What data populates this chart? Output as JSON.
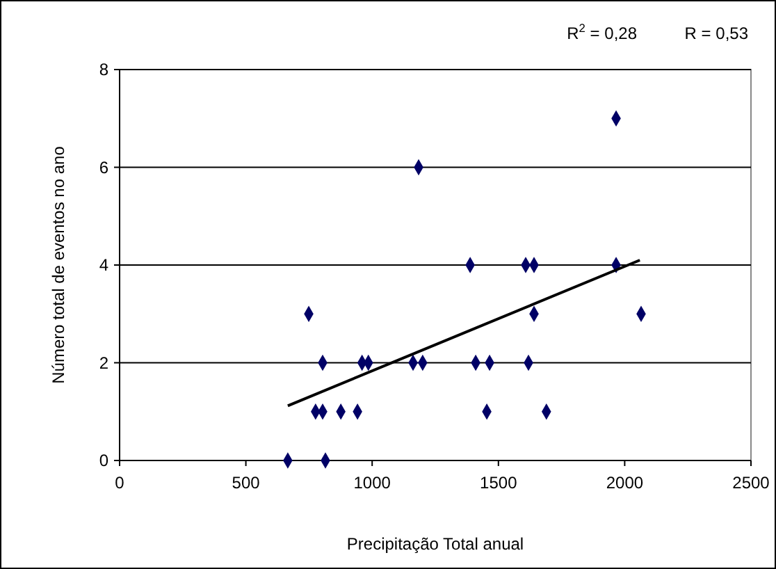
{
  "chart_data": {
    "type": "scatter",
    "xlabel": "Precipitação Total anual",
    "ylabel": "Número total de eventos no ano",
    "annotations": [
      "R$^{2}$ = 0,28",
      "R = 0,53"
    ],
    "xlim": [
      0,
      2500
    ],
    "xticks": [
      0,
      500,
      1000,
      1500,
      2000,
      2500
    ],
    "ylim": [
      0,
      8
    ],
    "yticks": [
      0,
      2,
      4,
      6,
      8
    ],
    "grid": "y",
    "marker": "diamond",
    "series": [
      {
        "color": "#000066",
        "x": [
          666,
          815,
          749,
          804,
          960,
          985,
          1162,
          1200,
          1184,
          776,
          804,
          876,
          942,
          1388,
          1608,
          1641,
          1966,
          1966,
          1641,
          2065,
          1410,
          1465,
          1619,
          1454,
          1690
        ],
        "values": [
          0,
          0,
          3,
          2,
          2,
          2,
          2,
          2,
          6,
          1,
          1,
          1,
          1,
          4,
          4,
          4,
          4,
          7,
          3,
          3,
          2,
          2,
          2,
          1,
          1
        ]
      },
      {
        "type": "line",
        "color": "#000000",
        "marker": "none",
        "x": [
          666,
          2060
        ],
        "values": [
          1.12,
          4.1
        ]
      }
    ]
  }
}
